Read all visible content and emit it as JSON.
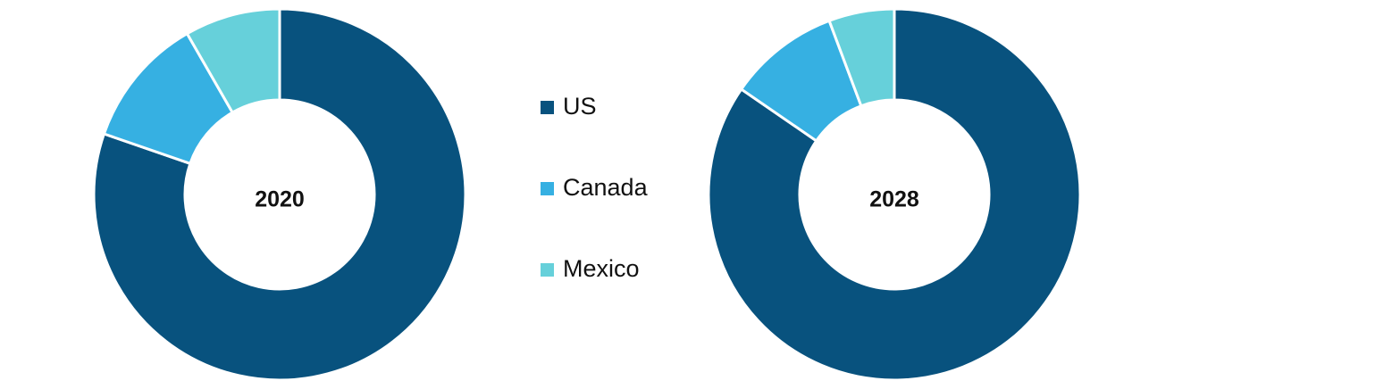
{
  "chart_data": {
    "type": "donut",
    "categories": [
      "US",
      "Canada",
      "Mexico"
    ],
    "colors": [
      "#08527e",
      "#36b0e2",
      "#66d0da"
    ],
    "series": [
      {
        "name": "2020",
        "values": [
          80.3,
          11.4,
          8.3
        ]
      },
      {
        "name": "2028",
        "values": [
          84.6,
          9.7,
          5.7
        ]
      }
    ]
  }
}
